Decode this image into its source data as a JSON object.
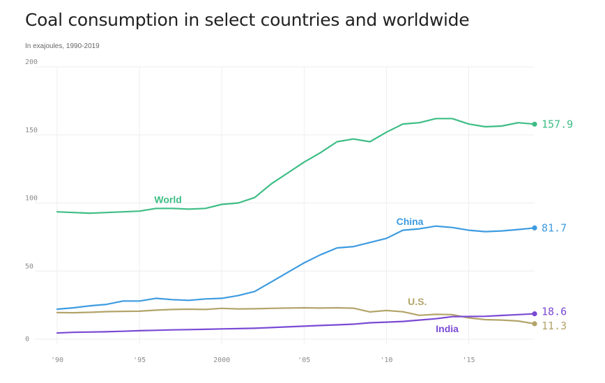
{
  "chart_data": {
    "type": "line",
    "title": "Coal consumption in select countries and worldwide",
    "subtitle": "In exajoules, 1990-2019",
    "xlabel": "",
    "ylabel": "",
    "xlim": [
      1990,
      2019
    ],
    "ylim": [
      0,
      200
    ],
    "y_ticks": [
      0,
      50,
      100,
      150,
      200
    ],
    "y_tick_labels": [
      "0",
      "50",
      "100",
      "150",
      "200"
    ],
    "x_ticks": [
      1990,
      1995,
      2000,
      2005,
      2010,
      2015
    ],
    "x_tick_labels": [
      "'90",
      "'95",
      "2000",
      "'05",
      "'10",
      "'15"
    ],
    "x": [
      1990,
      1991,
      1992,
      1993,
      1994,
      1995,
      1996,
      1997,
      1998,
      1999,
      2000,
      2001,
      2002,
      2003,
      2004,
      2005,
      2006,
      2007,
      2008,
      2009,
      2010,
      2011,
      2012,
      2013,
      2014,
      2015,
      2016,
      2017,
      2018,
      2019
    ],
    "series": [
      {
        "name": "World",
        "color": "#3dbd85",
        "end_label": "157.9",
        "values": [
          93.5,
          93,
          92.5,
          93,
          93.5,
          94,
          96,
          96,
          95.5,
          96,
          99,
          100,
          104,
          114,
          122,
          130,
          137,
          145,
          147,
          145,
          152,
          158,
          159,
          162,
          162,
          158,
          156,
          156.5,
          159,
          157.9
        ]
      },
      {
        "name": "China",
        "color": "#3d9be0",
        "end_label": "81.7",
        "values": [
          22,
          23,
          24.5,
          25.5,
          28,
          28,
          30,
          29,
          28.5,
          29.5,
          30,
          32,
          35,
          42,
          49,
          56,
          62,
          67,
          68,
          71,
          74,
          80,
          81,
          83,
          82,
          80,
          79,
          79.5,
          80.5,
          81.7
        ]
      },
      {
        "name": "U.S.",
        "color": "#b3a46a",
        "end_label": "11.3",
        "values": [
          19.5,
          19.4,
          19.7,
          20.2,
          20.4,
          20.5,
          21.3,
          21.8,
          22,
          21.8,
          22.6,
          22.2,
          22.3,
          22.6,
          22.8,
          23,
          22.8,
          23,
          22.7,
          20,
          21,
          20.1,
          17.5,
          18.2,
          18,
          15.6,
          14.3,
          14,
          13.3,
          11.3
        ]
      },
      {
        "name": "India",
        "color": "#7a49d4",
        "end_label": "18.6",
        "values": [
          4.5,
          5,
          5.2,
          5.4,
          5.8,
          6.2,
          6.5,
          6.8,
          7,
          7.2,
          7.5,
          7.7,
          8,
          8.5,
          9,
          9.5,
          10,
          10.5,
          11,
          12,
          12.5,
          13,
          14,
          15,
          16.5,
          16.6,
          16.8,
          17.4,
          18,
          18.6
        ]
      }
    ]
  }
}
